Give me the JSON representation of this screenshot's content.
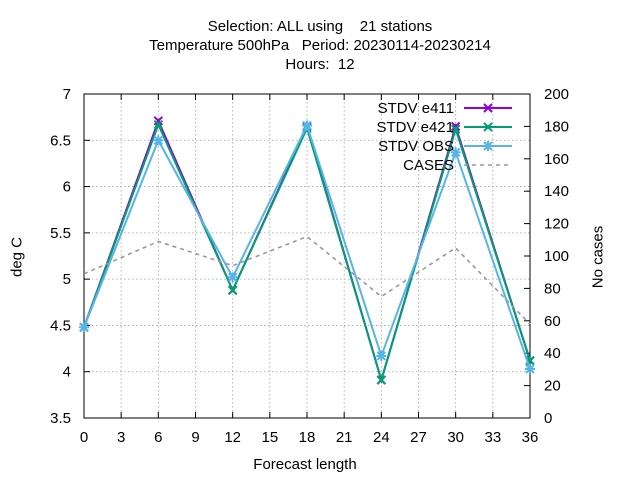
{
  "title_lines": [
    "Selection: ALL using    21 stations",
    "Temperature 500hPa   Period: 20230114-20230214",
    "Hours:  12"
  ],
  "chart_data": {
    "type": "line",
    "xlabel": "Forecast length",
    "ylabel": "deg C",
    "y2label": "No cases",
    "x": [
      0,
      6,
      12,
      18,
      24,
      30,
      36
    ],
    "xticks": [
      0,
      3,
      6,
      9,
      12,
      15,
      18,
      21,
      24,
      27,
      30,
      33,
      36
    ],
    "xlim": [
      0,
      36
    ],
    "ylim": [
      3.5,
      7
    ],
    "yticks": [
      3.5,
      4,
      4.5,
      5,
      5.5,
      6,
      6.5,
      7
    ],
    "y2lim": [
      0,
      200
    ],
    "y2ticks": [
      0,
      20,
      40,
      60,
      80,
      100,
      120,
      140,
      160,
      180,
      200
    ],
    "grid": true,
    "legend_position": "top-right",
    "series": [
      {
        "name": "STDV e411",
        "axis": "y",
        "color": "#9400d3",
        "marker": "x",
        "dash": false,
        "values": [
          4.48,
          6.71,
          4.88,
          6.65,
          3.91,
          6.65,
          4.12
        ]
      },
      {
        "name": "STDV e421",
        "axis": "y",
        "color": "#009e73",
        "marker": "xfill",
        "dash": false,
        "values": [
          4.48,
          6.67,
          4.88,
          6.63,
          3.91,
          6.62,
          4.12
        ]
      },
      {
        "name": "STDV OBS",
        "axis": "y",
        "color": "#56b4e9",
        "marker": "star",
        "dash": false,
        "values": [
          4.48,
          6.5,
          5.02,
          6.66,
          4.17,
          6.37,
          4.03
        ]
      },
      {
        "name": "CASES",
        "axis": "y2",
        "color": "#999999",
        "marker": "",
        "dash": true,
        "values": [
          89,
          109,
          94,
          112,
          75,
          105,
          58
        ]
      }
    ]
  }
}
